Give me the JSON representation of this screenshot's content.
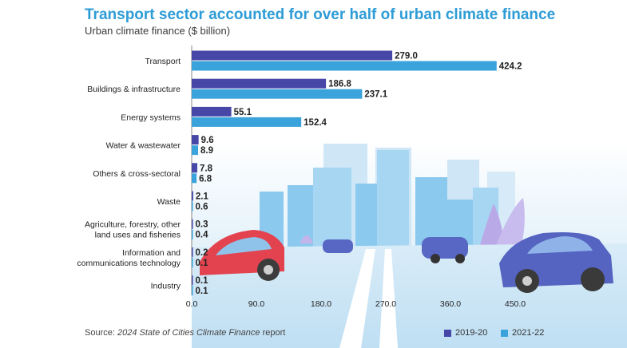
{
  "title": "Transport sector accounted for over half of urban climate finance",
  "subtitle": "Urban climate finance ($ billion)",
  "source": {
    "prefix": "Source: ",
    "report": "2024 State of Cities Climate Finance",
    "suffix": " report"
  },
  "colors": {
    "series_2019": "#4747a8",
    "series_2021": "#3aa3dc",
    "title": "#2e9cd6"
  },
  "chart_data": {
    "type": "bar",
    "orientation": "horizontal",
    "title": "Transport sector accounted for over half of urban climate finance",
    "subtitle": "Urban climate finance ($ billion)",
    "categories": [
      "Transport",
      "Buildings & infrastructure",
      "Energy systems",
      "Water & wastewater",
      "Others & cross-sectoral",
      "Waste",
      "Agriculture, forestry, other land uses and fisheries",
      "Information and communications technology",
      "Industry"
    ],
    "category_lines": [
      [
        "Transport"
      ],
      [
        "Buildings & infrastructure"
      ],
      [
        "Energy systems"
      ],
      [
        "Water & wastewater"
      ],
      [
        "Others & cross-sectoral"
      ],
      [
        "Waste"
      ],
      [
        "Agriculture, forestry, other",
        "land uses and fisheries"
      ],
      [
        "Information and",
        "communications technology"
      ],
      [
        "Industry"
      ]
    ],
    "series": [
      {
        "name": "2019-20",
        "color": "#4747a8",
        "values": [
          279.0,
          186.8,
          55.1,
          9.6,
          7.8,
          2.1,
          0.3,
          0.2,
          0.1
        ]
      },
      {
        "name": "2021-22",
        "color": "#3aa3dc",
        "values": [
          424.2,
          237.1,
          152.4,
          8.9,
          6.8,
          0.6,
          0.4,
          0.1,
          0.1
        ]
      }
    ],
    "value_labels": [
      [
        "279.0",
        "186.8",
        "55.1",
        "9.6",
        "7.8",
        "2.1",
        "0.3",
        "0.2",
        "0.1"
      ],
      [
        "424.2",
        "237.1",
        "152.4",
        "8.9",
        "6.8",
        "0.6",
        "0.4",
        "0.1",
        "0.1"
      ]
    ],
    "xticks": [
      "0.0",
      "90.0",
      "180.0",
      "270.0",
      "360.0",
      "450.0"
    ],
    "xtick_values": [
      0,
      90,
      180,
      270,
      360,
      450
    ],
    "xlim": [
      0,
      500
    ],
    "grid": false,
    "legend_position": "bottom-right"
  }
}
